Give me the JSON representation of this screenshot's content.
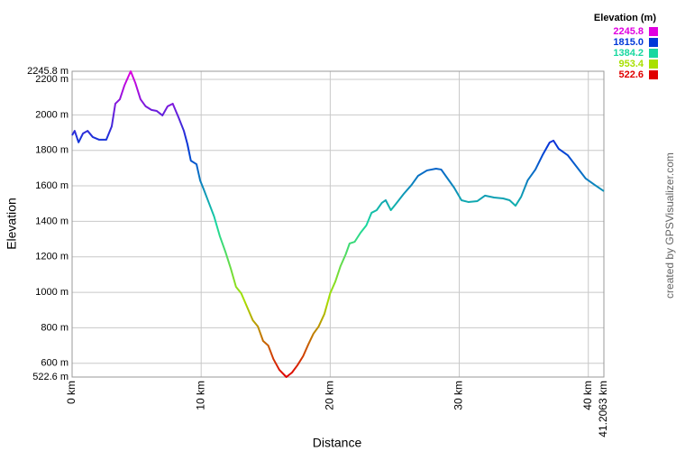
{
  "chart_data": {
    "type": "line",
    "y_axis_label": "Elevation",
    "x_axis_label": "Distance",
    "credit": "created by GPSVisualizer.com",
    "legend": {
      "title": "Elevation (m)",
      "stops": [
        {
          "value": 2245.8,
          "color": "#e000e0"
        },
        {
          "value": {
            "value": 1815,
            "label": "1815.0"
          },
          "color": "#0038d8"
        },
        {
          "value": 1384.2,
          "color": "#18d8a0"
        },
        {
          "value": 953.4,
          "color": "#a8e000"
        },
        {
          "value": 522.6,
          "color": "#e00000"
        }
      ]
    },
    "xlim": [
      0,
      41.2063
    ],
    "ylim": [
      522.6,
      2245.8
    ],
    "grid": true,
    "xticks": [
      {
        "value": 0,
        "label": "0 km"
      },
      {
        "value": 10,
        "label": "10 km"
      },
      {
        "value": 20,
        "label": "20 km"
      },
      {
        "value": 30,
        "label": "30 km"
      },
      {
        "value": 40,
        "label": "40 km"
      },
      {
        "value": 41.2063,
        "label": "41.2063 km"
      }
    ],
    "yticks": [
      {
        "value": 522.6,
        "label": "522.6 m"
      },
      {
        "value": 600,
        "label": "600 m"
      },
      {
        "value": 800,
        "label": "800 m"
      },
      {
        "value": 1000,
        "label": "1000 m"
      },
      {
        "value": 1200,
        "label": "1200 m"
      },
      {
        "value": 1400,
        "label": "1400 m"
      },
      {
        "value": 1600,
        "label": "1600 m"
      },
      {
        "value": 1800,
        "label": "1800 m"
      },
      {
        "value": 2000,
        "label": "2000 m"
      },
      {
        "value": 2200,
        "label": "2200 m"
      },
      {
        "value": 2245.8,
        "label": "2245.8 m"
      }
    ],
    "x": [
      0,
      0.2,
      0.5,
      0.84,
      1.2,
      1.6,
      2.1,
      2.65,
      3.07,
      3.35,
      3.7,
      4.05,
      4.54,
      4.9,
      5.3,
      5.7,
      6.15,
      6.56,
      7.0,
      7.4,
      7.8,
      8.24,
      8.66,
      8.94,
      9.2,
      9.64,
      9.92,
      10.2,
      10.6,
      11.0,
      11.45,
      11.9,
      12.3,
      12.7,
      13.1,
      13.55,
      14.0,
      14.4,
      14.8,
      15.2,
      15.6,
      16.06,
      16.6,
      17.04,
      17.46,
      17.9,
      18.3,
      18.7,
      19.1,
      19.55,
      20.0,
      20.4,
      20.8,
      21.2,
      21.5,
      21.9,
      22.35,
      22.8,
      23.2,
      23.6,
      24.0,
      24.3,
      24.7,
      25.1,
      25.7,
      26.3,
      26.8,
      27.5,
      28.2,
      28.6,
      29.05,
      29.6,
      30.17,
      30.7,
      31.4,
      32.0,
      32.7,
      33.4,
      33.9,
      34.36,
      34.8,
      35.3,
      35.9,
      36.45,
      37.0,
      37.3,
      37.7,
      38.4,
      39.1,
      39.8,
      40.5,
      41.2063
    ],
    "series": [
      {
        "values": [
          1885,
          1910,
          1845,
          1895,
          1910,
          1875,
          1860,
          1860,
          1935,
          2063,
          2088,
          2165,
          2245.8,
          2180,
          2088,
          2048,
          2028,
          2022,
          1997,
          2048,
          2063,
          1987,
          1910,
          1834,
          1742,
          1722,
          1631,
          1580,
          1504,
          1428,
          1316,
          1224,
          1133,
          1031,
          995,
          919,
          843,
          807,
          726,
          700,
          624,
          563,
          522.6,
          548,
          589,
          640,
          706,
          767,
          807,
          878,
          995,
          1061,
          1148,
          1214,
          1275,
          1285,
          1336,
          1377,
          1448,
          1463,
          1504,
          1519,
          1463,
          1499,
          1555,
          1605,
          1656,
          1687,
          1697,
          1692,
          1646,
          1590,
          1519,
          1509,
          1514,
          1545,
          1534,
          1529,
          1519,
          1488,
          1539,
          1631,
          1692,
          1773,
          1844,
          1855,
          1809,
          1773,
          1707,
          1641,
          1605,
          1570
        ]
      }
    ]
  }
}
